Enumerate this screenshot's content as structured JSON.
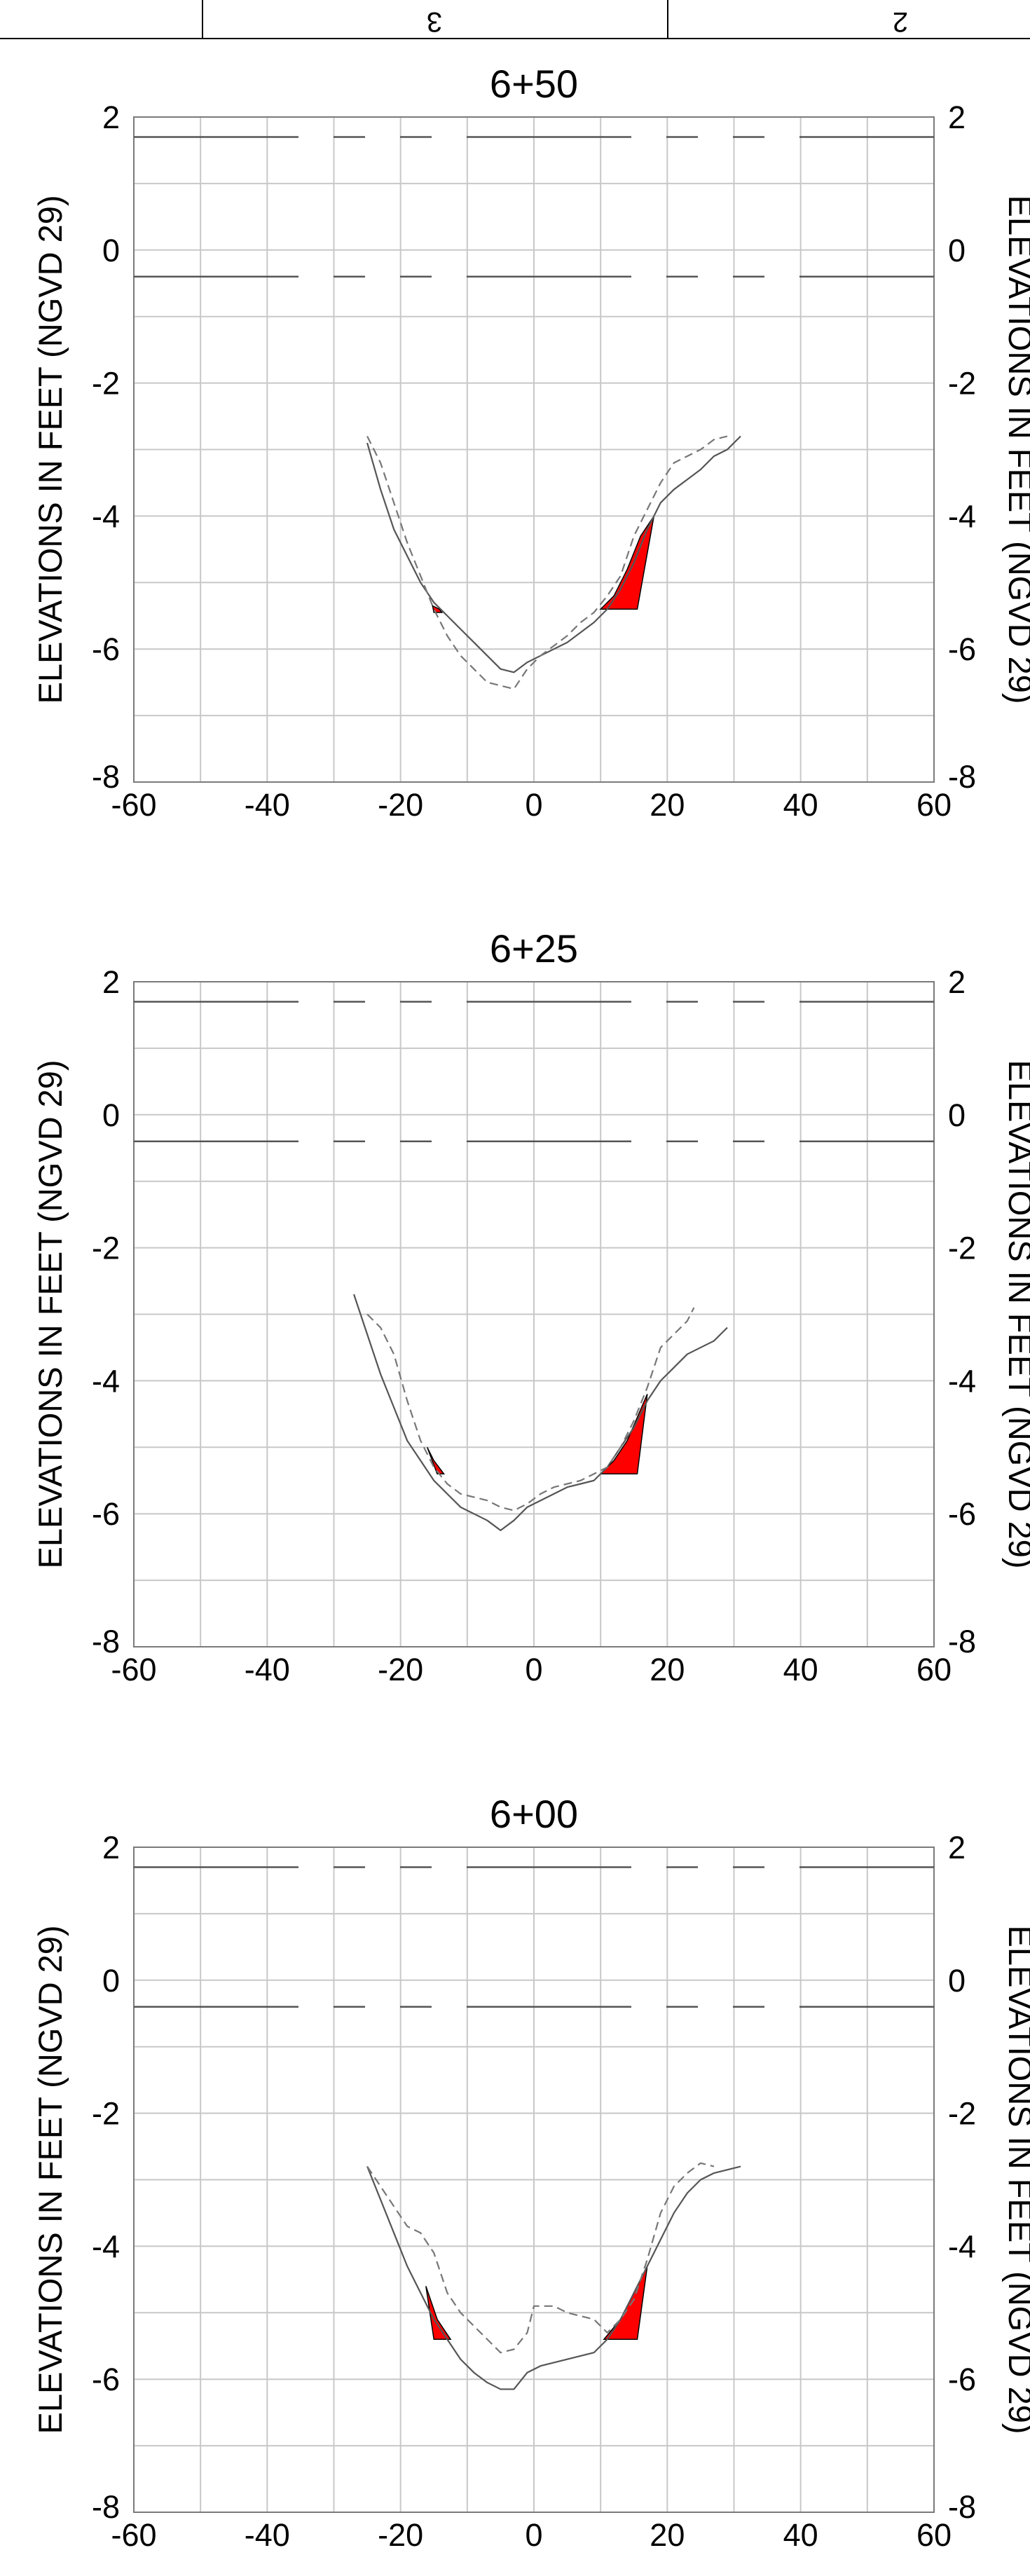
{
  "header": {
    "cell_left": "3",
    "cell_right": "2"
  },
  "axis_text": {
    "ylabel_left": "ELEVATIONS IN FEET (NGVD 29)",
    "ylabel_right": "ELEVATIONS IN FEET (NGVD 29)"
  },
  "chart_data": [
    {
      "type": "line",
      "title": "6+50",
      "ylabel": "ELEVATIONS IN FEET (NGVD 29)",
      "xlim": [
        -60,
        60
      ],
      "ylim": [
        -8,
        2
      ],
      "xticks": [
        "-60",
        "-40",
        "-20",
        "0",
        "20",
        "40",
        "60"
      ],
      "yticks": [
        "2",
        "0",
        "-2",
        "-4",
        "-6",
        "-8"
      ],
      "grid": true,
      "reference_lines": [
        {
          "y": 1.7,
          "style": "dash-dot"
        },
        {
          "y": -0.4,
          "style": "dash-dot"
        }
      ],
      "series": [
        {
          "style": "solid",
          "x": [
            -25,
            -23,
            -21,
            -19,
            -17,
            -15,
            -13,
            -11,
            -9,
            -7,
            -5,
            -3,
            -1,
            1,
            3,
            5,
            7,
            9,
            11,
            13,
            15,
            17,
            19,
            21,
            23,
            25,
            27,
            29,
            31
          ],
          "y": [
            -2.9,
            -3.6,
            -4.2,
            -4.6,
            -5.0,
            -5.3,
            -5.5,
            -5.7,
            -5.9,
            -6.1,
            -6.3,
            -6.35,
            -6.2,
            -6.1,
            -6.0,
            -5.9,
            -5.75,
            -5.6,
            -5.4,
            -5.1,
            -4.7,
            -4.2,
            -3.8,
            -3.6,
            -3.45,
            -3.3,
            -3.1,
            -3.0,
            -2.8
          ]
        },
        {
          "style": "dashed",
          "x": [
            -25,
            -23,
            -21,
            -19,
            -17,
            -15,
            -13,
            -11,
            -9,
            -7,
            -5,
            -3,
            -1,
            1,
            3,
            5,
            7,
            9,
            11,
            13,
            15,
            17,
            19,
            21,
            23,
            25,
            27,
            29
          ],
          "y": [
            -2.8,
            -3.2,
            -3.8,
            -4.4,
            -4.9,
            -5.4,
            -5.8,
            -6.1,
            -6.3,
            -6.5,
            -6.55,
            -6.6,
            -6.3,
            -6.1,
            -5.95,
            -5.8,
            -5.6,
            -5.45,
            -5.2,
            -4.9,
            -4.3,
            -3.9,
            -3.5,
            -3.2,
            -3.1,
            -3.0,
            -2.85,
            -2.8
          ]
        }
      ],
      "cut_areas": [
        [
          [
            -15.2,
            -5.35
          ],
          [
            -14.2,
            -5.4
          ],
          [
            -13.8,
            -5.45
          ],
          [
            -15,
            -5.45
          ]
        ],
        [
          [
            10,
            -5.4
          ],
          [
            12,
            -5.2
          ],
          [
            14,
            -4.8
          ],
          [
            16,
            -4.3
          ],
          [
            18,
            -4.0
          ],
          [
            15.5,
            -5.4
          ]
        ]
      ]
    },
    {
      "type": "line",
      "title": "6+25",
      "ylabel": "ELEVATIONS IN FEET (NGVD 29)",
      "xlim": [
        -60,
        60
      ],
      "ylim": [
        -8,
        2
      ],
      "xticks": [
        "-60",
        "-40",
        "-20",
        "0",
        "20",
        "40",
        "60"
      ],
      "yticks": [
        "2",
        "0",
        "-2",
        "-4",
        "-6",
        "-8"
      ],
      "grid": true,
      "reference_lines": [
        {
          "y": 1.7,
          "style": "dash-dot"
        },
        {
          "y": -0.4,
          "style": "dash-dot"
        }
      ],
      "series": [
        {
          "style": "solid",
          "x": [
            -27,
            -25,
            -23,
            -21,
            -19,
            -17,
            -15,
            -13,
            -11,
            -9,
            -7,
            -5,
            -3,
            -1,
            1,
            3,
            5,
            7,
            9,
            11,
            13,
            15,
            17,
            19,
            21,
            23,
            25,
            27,
            29
          ],
          "y": [
            -2.7,
            -3.3,
            -3.9,
            -4.4,
            -4.9,
            -5.2,
            -5.5,
            -5.7,
            -5.9,
            -6.0,
            -6.1,
            -6.25,
            -6.1,
            -5.9,
            -5.8,
            -5.7,
            -5.6,
            -5.55,
            -5.5,
            -5.3,
            -5.0,
            -4.7,
            -4.3,
            -4.0,
            -3.8,
            -3.6,
            -3.5,
            -3.4,
            -3.2
          ]
        },
        {
          "style": "dashed",
          "x": [
            -25,
            -23,
            -21,
            -19,
            -17,
            -15,
            -13,
            -11,
            -9,
            -7,
            -5,
            -3,
            -1,
            1,
            3,
            5,
            7,
            9,
            11,
            13,
            15,
            17,
            19,
            21,
            23,
            24
          ],
          "y": [
            -3.0,
            -3.2,
            -3.6,
            -4.3,
            -4.9,
            -5.3,
            -5.55,
            -5.7,
            -5.75,
            -5.8,
            -5.9,
            -5.95,
            -5.85,
            -5.7,
            -5.6,
            -5.55,
            -5.5,
            -5.4,
            -5.3,
            -5.0,
            -4.6,
            -4.1,
            -3.5,
            -3.3,
            -3.1,
            -2.9
          ]
        }
      ],
      "cut_areas": [
        [
          [
            -16,
            -5.0
          ],
          [
            -15,
            -5.2
          ],
          [
            -13.5,
            -5.4
          ],
          [
            -14.5,
            -5.4
          ]
        ],
        [
          [
            10,
            -5.4
          ],
          [
            12,
            -5.2
          ],
          [
            14,
            -4.9
          ],
          [
            17,
            -4.2
          ],
          [
            15.5,
            -5.4
          ]
        ]
      ]
    },
    {
      "type": "line",
      "title": "6+00",
      "ylabel": "ELEVATIONS IN FEET (NGVD 29)",
      "xlim": [
        -60,
        60
      ],
      "ylim": [
        -8,
        2
      ],
      "xticks": [
        "-60",
        "-40",
        "-20",
        "0",
        "20",
        "40",
        "60"
      ],
      "yticks": [
        "2",
        "0",
        "-2",
        "-4",
        "-6",
        "-8"
      ],
      "grid": true,
      "reference_lines": [
        {
          "y": 1.7,
          "style": "dash-dot"
        },
        {
          "y": -0.4,
          "style": "dash-dot"
        }
      ],
      "series": [
        {
          "style": "solid",
          "x": [
            -25,
            -23,
            -21,
            -19,
            -17,
            -15,
            -13,
            -11,
            -9,
            -7,
            -5,
            -3,
            -1,
            1,
            3,
            5,
            7,
            9,
            11,
            13,
            15,
            17,
            19,
            21,
            23,
            25,
            27,
            29,
            31
          ],
          "y": [
            -2.8,
            -3.3,
            -3.8,
            -4.3,
            -4.7,
            -5.1,
            -5.4,
            -5.7,
            -5.9,
            -6.05,
            -6.15,
            -6.15,
            -5.9,
            -5.8,
            -5.75,
            -5.7,
            -5.65,
            -5.6,
            -5.4,
            -5.1,
            -4.7,
            -4.3,
            -3.9,
            -3.5,
            -3.2,
            -3.0,
            -2.9,
            -2.85,
            -2.8
          ]
        },
        {
          "style": "dashed",
          "x": [
            -25,
            -23,
            -21,
            -19,
            -17,
            -15,
            -13,
            -11,
            -9,
            -7,
            -5,
            -3,
            -1,
            0,
            1,
            3,
            5,
            7,
            9,
            11,
            13,
            15,
            17,
            19,
            21,
            23,
            25,
            27
          ],
          "y": [
            -2.8,
            -3.1,
            -3.4,
            -3.7,
            -3.8,
            -4.1,
            -4.7,
            -5.0,
            -5.2,
            -5.4,
            -5.6,
            -5.55,
            -5.3,
            -4.9,
            -4.9,
            -4.9,
            -5.0,
            -5.05,
            -5.1,
            -5.3,
            -5.1,
            -4.8,
            -4.2,
            -3.5,
            -3.1,
            -2.9,
            -2.75,
            -2.8
          ]
        }
      ],
      "cut_areas": [
        [
          [
            -16.2,
            -4.6
          ],
          [
            -14.5,
            -5.1
          ],
          [
            -12.5,
            -5.4
          ],
          [
            -15,
            -5.4
          ]
        ],
        [
          [
            10.5,
            -5.4
          ],
          [
            13,
            -5.1
          ],
          [
            15,
            -4.7
          ],
          [
            17,
            -4.3
          ],
          [
            15.5,
            -5.4
          ]
        ]
      ]
    }
  ]
}
